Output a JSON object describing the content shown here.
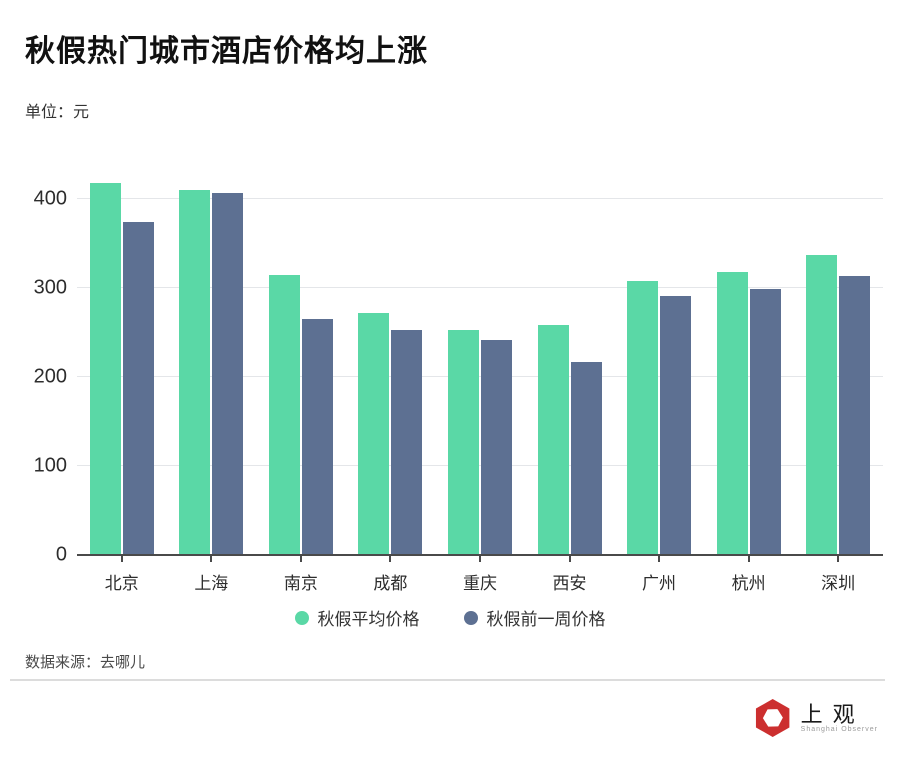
{
  "header": {
    "title": "秋假热门城市酒店价格均上涨",
    "unit_label": "单位：元"
  },
  "chart_data": {
    "type": "bar",
    "title": "秋假热门城市酒店价格均上涨",
    "ylabel": "元",
    "xlabel": "",
    "ylim": [
      0,
      438
    ],
    "yticks": [
      0,
      100,
      200,
      300,
      400
    ],
    "grid": true,
    "legend_position": "bottom",
    "categories": [
      "北京",
      "上海",
      "南京",
      "成都",
      "重庆",
      "西安",
      "广州",
      "杭州",
      "深圳"
    ],
    "series": [
      {
        "name": "秋假平均价格",
        "color": "#5AD8A6",
        "values": [
          418,
          410,
          315,
          272,
          253,
          258,
          308,
          318,
          337
        ]
      },
      {
        "name": "秋假前一周价格",
        "color": "#5D7092",
        "values": [
          374,
          407,
          265,
          253,
          242,
          217,
          291,
          299,
          313
        ]
      }
    ]
  },
  "footer": {
    "source": "数据来源：去哪儿",
    "logo_text": "上观",
    "logo_subtext": "Shanghai Observer"
  },
  "colors": {
    "series_green": "#5AD8A6",
    "series_blue": "#5D7092",
    "gridline": "#e4e6e9",
    "axis": "#4a4a4a",
    "logo_red": "#cc2f2f",
    "background": "#ffffff"
  }
}
